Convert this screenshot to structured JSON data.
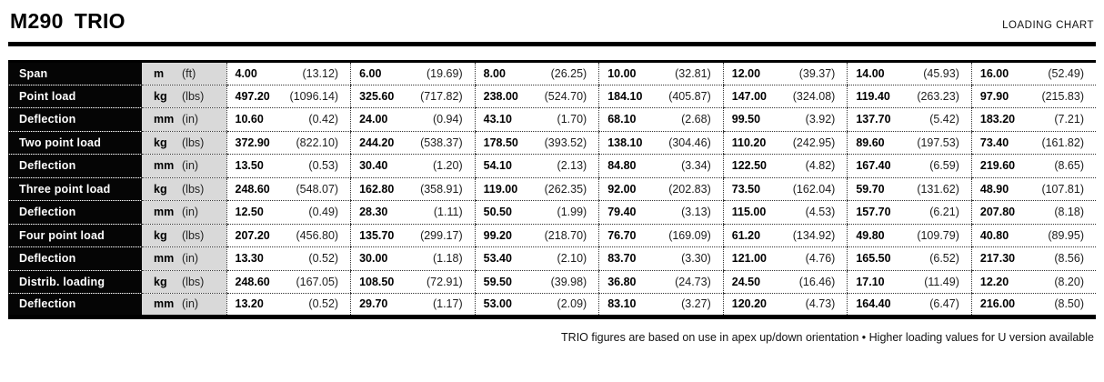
{
  "header": {
    "model": "M290",
    "series": "TRIO",
    "right_label": "LOADING CHART"
  },
  "table": {
    "rows": [
      {
        "label": "Span",
        "unit_metric": "m",
        "unit_imperial": "(ft)",
        "cells": [
          [
            "4.00",
            "(13.12)"
          ],
          [
            "6.00",
            "(19.69)"
          ],
          [
            "8.00",
            "(26.25)"
          ],
          [
            "10.00",
            "(32.81)"
          ],
          [
            "12.00",
            "(39.37)"
          ],
          [
            "14.00",
            "(45.93)"
          ],
          [
            "16.00",
            "(52.49)"
          ]
        ]
      },
      {
        "label": "Point load",
        "unit_metric": "kg",
        "unit_imperial": "(lbs)",
        "cells": [
          [
            "497.20",
            "(1096.14)"
          ],
          [
            "325.60",
            "(717.82)"
          ],
          [
            "238.00",
            "(524.70)"
          ],
          [
            "184.10",
            "(405.87)"
          ],
          [
            "147.00",
            "(324.08)"
          ],
          [
            "119.40",
            "(263.23)"
          ],
          [
            "97.90",
            "(215.83)"
          ]
        ]
      },
      {
        "label": "Deflection",
        "unit_metric": "mm",
        "unit_imperial": "(in)",
        "cells": [
          [
            "10.60",
            "(0.42)"
          ],
          [
            "24.00",
            "(0.94)"
          ],
          [
            "43.10",
            "(1.70)"
          ],
          [
            "68.10",
            "(2.68)"
          ],
          [
            "99.50",
            "(3.92)"
          ],
          [
            "137.70",
            "(5.42)"
          ],
          [
            "183.20",
            "(7.21)"
          ]
        ]
      },
      {
        "label": "Two point load",
        "unit_metric": "kg",
        "unit_imperial": "(lbs)",
        "cells": [
          [
            "372.90",
            "(822.10)"
          ],
          [
            "244.20",
            "(538.37)"
          ],
          [
            "178.50",
            "(393.52)"
          ],
          [
            "138.10",
            "(304.46)"
          ],
          [
            "110.20",
            "(242.95)"
          ],
          [
            "89.60",
            "(197.53)"
          ],
          [
            "73.40",
            "(161.82)"
          ]
        ]
      },
      {
        "label": "Deflection",
        "unit_metric": "mm",
        "unit_imperial": "(in)",
        "cells": [
          [
            "13.50",
            "(0.53)"
          ],
          [
            "30.40",
            "(1.20)"
          ],
          [
            "54.10",
            "(2.13)"
          ],
          [
            "84.80",
            "(3.34)"
          ],
          [
            "122.50",
            "(4.82)"
          ],
          [
            "167.40",
            "(6.59)"
          ],
          [
            "219.60",
            "(8.65)"
          ]
        ]
      },
      {
        "label": "Three point load",
        "unit_metric": "kg",
        "unit_imperial": "(lbs)",
        "cells": [
          [
            "248.60",
            "(548.07)"
          ],
          [
            "162.80",
            "(358.91)"
          ],
          [
            "119.00",
            "(262.35)"
          ],
          [
            "92.00",
            "(202.83)"
          ],
          [
            "73.50",
            "(162.04)"
          ],
          [
            "59.70",
            "(131.62)"
          ],
          [
            "48.90",
            "(107.81)"
          ]
        ]
      },
      {
        "label": "Deflection",
        "unit_metric": "mm",
        "unit_imperial": "(in)",
        "cells": [
          [
            "12.50",
            "(0.49)"
          ],
          [
            "28.30",
            "(1.11)"
          ],
          [
            "50.50",
            "(1.99)"
          ],
          [
            "79.40",
            "(3.13)"
          ],
          [
            "115.00",
            "(4.53)"
          ],
          [
            "157.70",
            "(6.21)"
          ],
          [
            "207.80",
            "(8.18)"
          ]
        ]
      },
      {
        "label": "Four point load",
        "unit_metric": "kg",
        "unit_imperial": "(lbs)",
        "cells": [
          [
            "207.20",
            "(456.80)"
          ],
          [
            "135.70",
            "(299.17)"
          ],
          [
            "99.20",
            "(218.70)"
          ],
          [
            "76.70",
            "(169.09)"
          ],
          [
            "61.20",
            "(134.92)"
          ],
          [
            "49.80",
            "(109.79)"
          ],
          [
            "40.80",
            "(89.95)"
          ]
        ]
      },
      {
        "label": "Deflection",
        "unit_metric": "mm",
        "unit_imperial": "(in)",
        "cells": [
          [
            "13.30",
            "(0.52)"
          ],
          [
            "30.00",
            "(1.18)"
          ],
          [
            "53.40",
            "(2.10)"
          ],
          [
            "83.70",
            "(3.30)"
          ],
          [
            "121.00",
            "(4.76)"
          ],
          [
            "165.50",
            "(6.52)"
          ],
          [
            "217.30",
            "(8.56)"
          ]
        ]
      },
      {
        "label": "Distrib. loading",
        "unit_metric": "kg",
        "unit_imperial": "(lbs)",
        "cells": [
          [
            "248.60",
            "(167.05)"
          ],
          [
            "108.50",
            "(72.91)"
          ],
          [
            "59.50",
            "(39.98)"
          ],
          [
            "36.80",
            "(24.73)"
          ],
          [
            "24.50",
            "(16.46)"
          ],
          [
            "17.10",
            "(11.49)"
          ],
          [
            "12.20",
            "(8.20)"
          ]
        ]
      },
      {
        "label": "Deflection",
        "unit_metric": "mm",
        "unit_imperial": "(in)",
        "cells": [
          [
            "13.20",
            "(0.52)"
          ],
          [
            "29.70",
            "(1.17)"
          ],
          [
            "53.00",
            "(2.09)"
          ],
          [
            "83.10",
            "(3.27)"
          ],
          [
            "120.20",
            "(4.73)"
          ],
          [
            "164.40",
            "(6.47)"
          ],
          [
            "216.00",
            "(8.50)"
          ]
        ]
      }
    ]
  },
  "footnote": "TRIO figures are based on use in apex up/down orientation • Higher loading values for U version available"
}
